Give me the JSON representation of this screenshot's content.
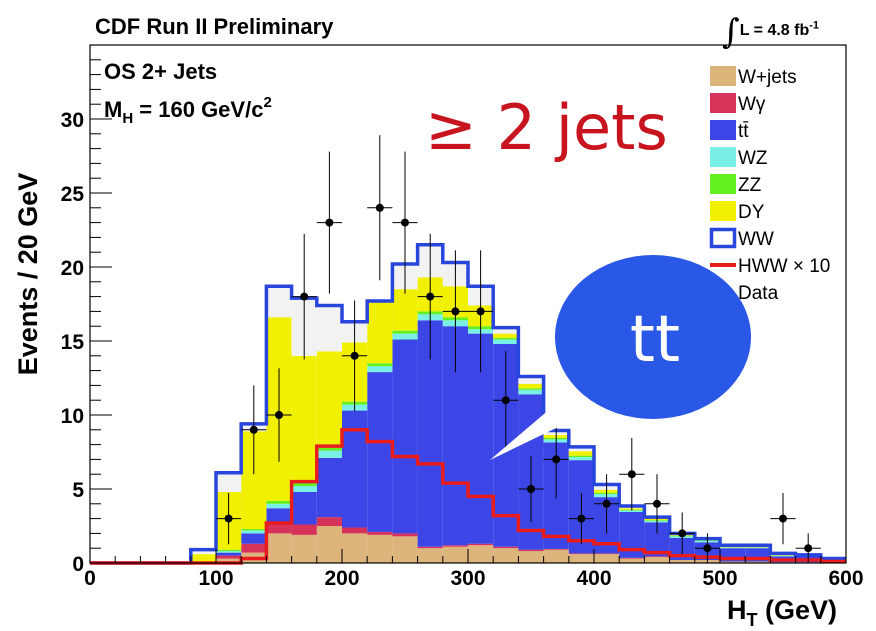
{
  "header": {
    "experiment": "CDF Run II Preliminary",
    "lumi_integral": "∫",
    "lumi_label": "L = 4.8 fb",
    "lumi_sup": "-1"
  },
  "chart_data": {
    "type": "bar",
    "stacked": true,
    "xlabel_main": "H",
    "xlabel_sub": "T",
    "xlabel_unit": " (GeV)",
    "ylabel": "Events / 20 GeV",
    "xlim": [
      0,
      600
    ],
    "ylim": [
      0,
      35
    ],
    "x_ticks": [
      0,
      100,
      200,
      300,
      400,
      500,
      600
    ],
    "y_ticks": [
      0,
      5,
      10,
      15,
      20,
      25,
      30
    ],
    "bin_width": 20,
    "bin_edges": [
      0,
      20,
      40,
      60,
      80,
      100,
      120,
      140,
      160,
      180,
      200,
      220,
      240,
      260,
      280,
      300,
      320,
      340,
      360,
      380,
      400,
      420,
      440,
      460,
      480,
      500,
      520,
      540,
      560,
      580,
      600
    ],
    "series": [
      {
        "name": "W+jets",
        "color": "#dcb47c",
        "values": [
          0,
          0,
          0,
          0,
          0,
          0.3,
          0.7,
          2.0,
          1.9,
          2.5,
          2.0,
          1.9,
          1.8,
          1.0,
          1.1,
          1.2,
          1.0,
          0.8,
          0.9,
          0.6,
          0.6,
          0.3,
          0.4,
          0.2,
          0.2,
          0.1,
          0.1,
          0.05,
          0.05,
          0.05
        ]
      },
      {
        "name": "Wγ",
        "color": "#d6325a",
        "values": [
          0,
          0,
          0,
          0,
          0,
          0.2,
          0.6,
          0.8,
          0.7,
          0.6,
          0.4,
          0.2,
          0.2,
          0.1,
          0.1,
          0.1,
          0.1,
          0.1,
          0.05,
          0.05,
          0.05,
          0.05,
          0.05,
          0.0,
          0.0,
          0.0,
          0.0,
          0.0,
          0.0,
          0.0
        ]
      },
      {
        "name": "tt̄",
        "color": "#3c46e6",
        "values": [
          0,
          0,
          0,
          0,
          0,
          0.2,
          0.7,
          0.9,
          2.2,
          4.0,
          7.9,
          10.8,
          13.1,
          15.3,
          14.8,
          14.2,
          13.7,
          10.5,
          7.2,
          6.3,
          3.8,
          3.1,
          2.3,
          1.5,
          1.2,
          0.9,
          0.9,
          0.4,
          0.4,
          0.2
        ]
      },
      {
        "name": "WZ",
        "color": "#78f0e6",
        "values": [
          0,
          0,
          0,
          0,
          0,
          0.1,
          0.2,
          0.3,
          0.4,
          0.5,
          0.4,
          0.4,
          0.4,
          0.4,
          0.4,
          0.3,
          0.3,
          0.3,
          0.2,
          0.2,
          0.2,
          0.1,
          0.1,
          0.1,
          0.1,
          0.05,
          0.05,
          0.05,
          0.0,
          0.0
        ]
      },
      {
        "name": "ZZ",
        "color": "#64f020",
        "values": [
          0,
          0,
          0,
          0,
          0,
          0.1,
          0.1,
          0.2,
          0.2,
          0.2,
          0.2,
          0.2,
          0.2,
          0.2,
          0.2,
          0.2,
          0.1,
          0.1,
          0.1,
          0.1,
          0.1,
          0.05,
          0.05,
          0.05,
          0.05,
          0.0,
          0.0,
          0.0,
          0.0,
          0.0
        ]
      },
      {
        "name": "DY",
        "color": "#f0f000",
        "values": [
          0,
          0,
          0,
          0,
          0.6,
          3.9,
          6.6,
          12.4,
          8.6,
          6.5,
          4.0,
          4.2,
          2.8,
          2.3,
          2.1,
          1.4,
          0.3,
          0.3,
          0.2,
          0.3,
          0.2,
          0.1,
          0.1,
          0.1,
          0.05,
          0.05,
          0.05,
          0.05,
          0.05,
          0.0
        ]
      },
      {
        "name": "WW",
        "color": "#f2f2f2",
        "edge": "#2846dc",
        "values": [
          0,
          0,
          0,
          0,
          0.3,
          1.3,
          0.5,
          2.1,
          3.9,
          3.1,
          1.4,
          0,
          1.7,
          2.2,
          1.6,
          1.3,
          0.4,
          0.5,
          0.3,
          0.3,
          0.35,
          0.15,
          0.1,
          0.05,
          0.05,
          0.1,
          0.1,
          0.1,
          0.05,
          0.05
        ]
      }
    ],
    "signal": {
      "name": "HWW × 10",
      "color": "#e81c1c",
      "values": [
        0,
        0,
        0,
        0,
        0,
        0,
        0.3,
        2.7,
        5.5,
        7.9,
        9.0,
        8.2,
        7.2,
        6.7,
        5.4,
        4.5,
        3.2,
        2.2,
        1.8,
        1.5,
        1.3,
        0.9,
        0.7,
        0.5,
        0.4,
        0.3,
        0.3,
        0.2,
        0.2,
        0.1
      ]
    },
    "data_points": {
      "name": "Data",
      "x": [
        110,
        130,
        150,
        170,
        190,
        210,
        230,
        250,
        270,
        290,
        310,
        330,
        350,
        370,
        390,
        410,
        430,
        450,
        470,
        490,
        550,
        570
      ],
      "y": [
        3,
        9,
        10,
        18,
        23,
        14,
        24,
        23,
        18,
        17,
        17,
        11,
        5,
        7,
        3,
        4,
        6,
        4,
        2,
        1,
        3,
        1
      ]
    },
    "annotations": {
      "channel": "OS 2+ Jets",
      "mass_prefix": "M",
      "mass_sub": "H",
      "mass_value": " = 160 GeV/c",
      "mass_sup": "2",
      "jets_label": "≥ 2 jets",
      "bubble_label": "tt"
    },
    "legend_position": "top-right",
    "grid": false
  }
}
